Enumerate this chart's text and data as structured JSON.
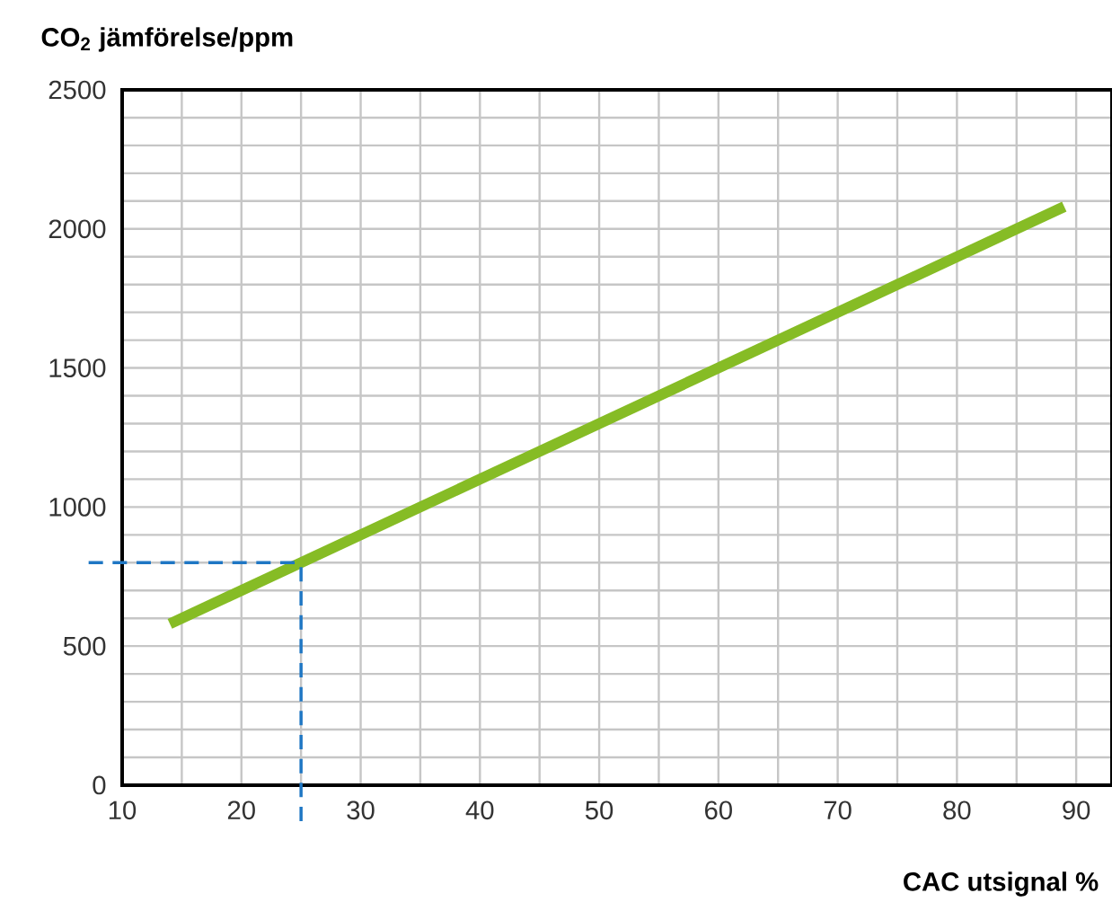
{
  "chart_data": {
    "type": "line",
    "xlabel": "CAC utsignal %",
    "ylabel": "CO$_{2}$ jämförelse/ppm",
    "x": [
      14,
      89
    ],
    "series": [
      {
        "color": "#86bc25",
        "values": [
          580,
          2080
        ]
      }
    ],
    "xlim": [
      10,
      93
    ],
    "ylim": [
      0,
      2500
    ],
    "xticks": [
      10,
      {
        "value": 15,
        "label": null
      },
      20,
      {
        "value": 25,
        "label": null
      },
      30,
      {
        "value": 35,
        "label": null
      },
      40,
      {
        "value": 45,
        "label": null
      },
      50,
      {
        "value": 55,
        "label": null
      },
      60,
      {
        "value": 65,
        "label": null
      },
      70,
      {
        "value": 75,
        "label": null
      },
      80,
      {
        "value": 85,
        "label": null
      },
      90
    ],
    "yticks": [
      0,
      {
        "value": 100,
        "label": null
      },
      {
        "value": 200,
        "label": null
      },
      {
        "value": 300,
        "label": null
      },
      {
        "value": 400,
        "label": null
      },
      500,
      {
        "value": 600,
        "label": null
      },
      {
        "value": 700,
        "label": null
      },
      {
        "value": 800,
        "label": null
      },
      {
        "value": 900,
        "label": null
      },
      1000,
      {
        "value": 1100,
        "label": null
      },
      {
        "value": 1200,
        "label": null
      },
      {
        "value": 1300,
        "label": null
      },
      {
        "value": 1400,
        "label": null
      },
      1500,
      {
        "value": 1600,
        "label": null
      },
      {
        "value": 1700,
        "label": null
      },
      {
        "value": 1800,
        "label": null
      },
      {
        "value": 1900,
        "label": null
      },
      2000,
      {
        "value": 2100,
        "label": null
      },
      {
        "value": 2200,
        "label": null
      },
      {
        "value": 2300,
        "label": null
      },
      {
        "value": 2400,
        "label": null
      },
      2500
    ],
    "grid": true,
    "line_style": "solid",
    "ref_lines": [
      {
        "axis": "x",
        "value": 25,
        "color": "#1f77c4",
        "line_style": "dashed"
      },
      {
        "axis": "y",
        "value": 800,
        "color": "#1f77c4",
        "line_style": "dashed"
      }
    ]
  }
}
